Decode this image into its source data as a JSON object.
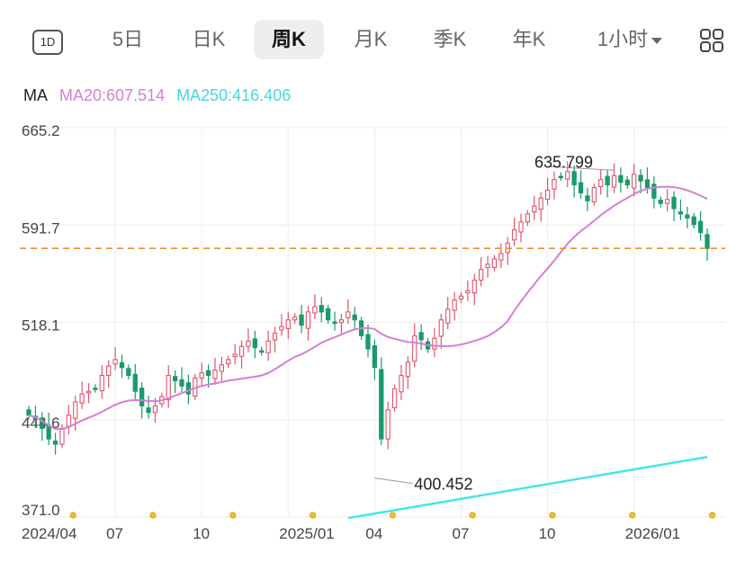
{
  "tabs": {
    "t1d": "1D",
    "t5d": "5日",
    "day": "日K",
    "week": "周K",
    "month": "月K",
    "quarter": "季K",
    "year": "年K",
    "hour": "1小时"
  },
  "active_tab": "周K",
  "icons": {
    "grid": "grid-icon",
    "dropdown": "chevron-down-icon"
  },
  "ma_legend": {
    "label": "MA",
    "ma20": "MA20:607.514",
    "ma250": "MA250:416.406"
  },
  "colors": {
    "up": "#e0566c",
    "down": "#1a9a6c",
    "ma20": "#d47fd6",
    "ma250": "#44e4ea",
    "ref_line": "#e8922a",
    "marker": "#f0c030"
  },
  "chart_data": {
    "type": "candlestick",
    "period": "weekly",
    "y_ticks": [
      "665.2",
      "591.7",
      "518.1",
      "444.6",
      "371.0"
    ],
    "ylim": [
      371.0,
      665.2
    ],
    "x_ticks": [
      "2024/04",
      "07",
      "10",
      "2025/01",
      "04",
      "07",
      "10",
      "2026/01"
    ],
    "grid": true,
    "reference_line": 574,
    "annotations": [
      {
        "label": "635.799",
        "type": "high",
        "index": 79
      },
      {
        "label": "400.452",
        "type": "low",
        "index": 52
      }
    ],
    "close": [
      448,
      445,
      438,
      430,
      426,
      438,
      448,
      458,
      464,
      466,
      468,
      478,
      485,
      490,
      484,
      478,
      466,
      455,
      450,
      455,
      462,
      478,
      474,
      470,
      464,
      476,
      480,
      478,
      482,
      486,
      490,
      494,
      500,
      504,
      499,
      496,
      504,
      510,
      515,
      520,
      522,
      516,
      526,
      530,
      526,
      520,
      518,
      520,
      526,
      520,
      508,
      498,
      484,
      430,
      452,
      468,
      478,
      488,
      508,
      505,
      498,
      506,
      520,
      528,
      535,
      538,
      542,
      550,
      558,
      562,
      566,
      570,
      578,
      588,
      594,
      600,
      606,
      612,
      618,
      626,
      628,
      632,
      622,
      616,
      610,
      620,
      626,
      622,
      629,
      624,
      622,
      630,
      625,
      620,
      612,
      608,
      611,
      604,
      600,
      597,
      592,
      586,
      574
    ],
    "ma20_visible_from_index": 0,
    "ma250": [
      370.2,
      416.406
    ],
    "ma250_visible_from_index": 48
  }
}
